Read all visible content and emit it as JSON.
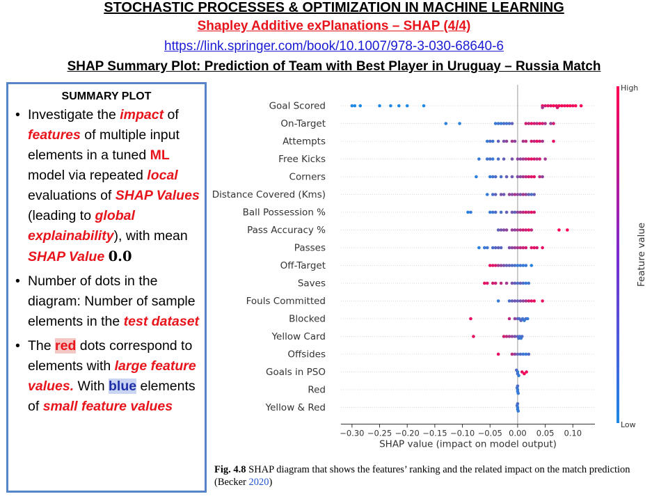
{
  "header": {
    "title": "STOCHASTIC PROCESSES & OPTIMIZATION IN MACHINE LEARNING",
    "subtitle": "Shapley Additive exPlanations – SHAP (4/4)",
    "link": "https://link.springer.com/book/10.1007/978-3-030-68640-6",
    "plot_title": "SHAP Summary Plot: Prediction of Team with Best Player in Uruguay – Russia Match"
  },
  "summary": {
    "heading": "SUMMARY PLOT",
    "bullet1": {
      "t1": "Investigate the ",
      "impact": "impact",
      "t2": " of ",
      "features": "features",
      "t3": " of multiple input elements in a tuned ",
      "ml": "ML",
      "t4": " model via repeated ",
      "local": "local",
      "t5": " evaluations of ",
      "shap_values": "SHAP Values",
      "t6": " (leading to ",
      "global": "global explainability",
      "t7": "), with mean ",
      "shap_value": "SHAP Value",
      "t8": " ",
      "zero": "0.0"
    },
    "bullet2": {
      "t1": "Number of dots in the diagram: Number of sample elements in the ",
      "test": "test dataset"
    },
    "bullet3": {
      "t1": "The ",
      "red": "red",
      "t2": " dots correspond to elements with ",
      "large": "large feature values.",
      "t3": " With ",
      "blue": "blue",
      "t4": " elements of ",
      "small": "small feature values"
    }
  },
  "caption": {
    "fig": "Fig. 4.8",
    "text": "  SHAP diagram that shows the features’ ranking and the related impact on the match prediction (Becker ",
    "cite": "2020",
    "end": ")"
  },
  "colors": {
    "low": "#1e88e5",
    "high": "#ff0052",
    "accent_red": "#e8141c",
    "accent_blue": "#1f2fa8"
  },
  "chart_data": {
    "type": "scatter",
    "xlabel": "SHAP value (impact on model output)",
    "xlim": [
      -0.32,
      0.14
    ],
    "xticks": [
      -0.3,
      -0.25,
      -0.2,
      -0.15,
      -0.1,
      -0.05,
      0.0,
      0.05,
      0.1
    ],
    "xtick_labels": [
      "−0.30",
      "−0.25",
      "−0.20",
      "−0.15",
      "−0.10",
      "−0.05",
      "0.00",
      "0.05",
      "0.10"
    ],
    "colorbar": {
      "label": "Feature value",
      "high": "High",
      "low": "Low"
    },
    "features": [
      {
        "name": "Goal Scored",
        "points": [
          [
            -0.3,
            0
          ],
          [
            -0.295,
            0
          ],
          [
            -0.285,
            0
          ],
          [
            -0.25,
            0
          ],
          [
            -0.23,
            0
          ],
          [
            -0.215,
            0
          ],
          [
            -0.2,
            0
          ],
          [
            -0.17,
            0
          ],
          [
            0.045,
            0.9
          ],
          [
            0.05,
            0.8
          ],
          [
            0.055,
            0.9
          ],
          [
            0.06,
            0.9
          ],
          [
            0.065,
            1
          ],
          [
            0.07,
            0.9
          ],
          [
            0.075,
            1
          ],
          [
            0.08,
            1
          ],
          [
            0.085,
            0.9
          ],
          [
            0.09,
            1
          ],
          [
            0.095,
            1
          ],
          [
            0.1,
            0.9
          ],
          [
            0.105,
            1
          ],
          [
            0.115,
            1
          ],
          [
            0.045,
            0.6
          ],
          [
            0.072,
            0.8
          ]
        ]
      },
      {
        "name": "On-Target",
        "points": [
          [
            -0.13,
            0.05
          ],
          [
            -0.105,
            0.05
          ],
          [
            -0.04,
            0.1
          ],
          [
            -0.035,
            0.15
          ],
          [
            -0.03,
            0.1
          ],
          [
            -0.025,
            0.2
          ],
          [
            -0.02,
            0.15
          ],
          [
            -0.015,
            0.2
          ],
          [
            -0.01,
            0.3
          ],
          [
            0.015,
            0.8
          ],
          [
            0.02,
            0.7
          ],
          [
            0.025,
            0.9
          ],
          [
            0.03,
            0.8
          ],
          [
            0.035,
            0.7
          ],
          [
            0.04,
            0.9
          ],
          [
            0.045,
            0.8
          ],
          [
            0.05,
            0.6
          ],
          [
            0.06,
            0.5
          ],
          [
            0.065,
            0.8
          ]
        ]
      },
      {
        "name": "Attempts",
        "points": [
          [
            -0.055,
            0.1
          ],
          [
            -0.05,
            0.2
          ],
          [
            -0.045,
            0.15
          ],
          [
            -0.035,
            0.3
          ],
          [
            -0.025,
            0.4
          ],
          [
            -0.02,
            0.5
          ],
          [
            -0.01,
            0.6
          ],
          [
            -0.005,
            0.5
          ],
          [
            0.01,
            0.6
          ],
          [
            0.015,
            0.7
          ],
          [
            0.025,
            0.8
          ],
          [
            0.03,
            0.7
          ],
          [
            0.035,
            0.9
          ],
          [
            0.04,
            0.8
          ],
          [
            0.045,
            0.6
          ],
          [
            0.065,
            0.9
          ]
        ]
      },
      {
        "name": "Free Kicks",
        "points": [
          [
            -0.07,
            0.1
          ],
          [
            -0.055,
            0.15
          ],
          [
            -0.05,
            0.2
          ],
          [
            -0.045,
            0.1
          ],
          [
            -0.035,
            0.2
          ],
          [
            -0.025,
            0.3
          ],
          [
            -0.01,
            0.4
          ],
          [
            0.0,
            0.5
          ],
          [
            0.005,
            0.5
          ],
          [
            0.01,
            0.6
          ],
          [
            0.015,
            0.7
          ],
          [
            0.02,
            0.8
          ],
          [
            0.025,
            0.9
          ],
          [
            0.03,
            0.8
          ],
          [
            0.035,
            0.7
          ],
          [
            0.04,
            0.8
          ],
          [
            0.05,
            0.6
          ]
        ]
      },
      {
        "name": "Corners",
        "points": [
          [
            -0.075,
            0.05
          ],
          [
            -0.05,
            0.1
          ],
          [
            -0.045,
            0.15
          ],
          [
            -0.04,
            0.2
          ],
          [
            -0.03,
            0.2
          ],
          [
            -0.02,
            0.3
          ],
          [
            -0.01,
            0.35
          ],
          [
            0.0,
            0.45
          ],
          [
            0.005,
            0.5
          ],
          [
            0.01,
            0.6
          ],
          [
            0.015,
            0.7
          ],
          [
            0.02,
            0.8
          ],
          [
            0.025,
            0.85
          ],
          [
            0.03,
            0.9
          ],
          [
            0.04,
            0.7
          ],
          [
            0.045,
            0.5
          ]
        ]
      },
      {
        "name": "Distance Covered (Kms)",
        "points": [
          [
            -0.055,
            0.1
          ],
          [
            -0.045,
            0.2
          ],
          [
            -0.04,
            0.3
          ],
          [
            -0.03,
            0.4
          ],
          [
            -0.025,
            0.35
          ],
          [
            -0.015,
            0.5
          ],
          [
            -0.01,
            0.45
          ],
          [
            -0.005,
            0.6
          ],
          [
            0.0,
            0.5
          ],
          [
            0.005,
            0.4
          ],
          [
            0.01,
            0.6
          ],
          [
            0.015,
            0.5
          ],
          [
            0.02,
            0.3
          ],
          [
            0.025,
            0.2
          ],
          [
            0.03,
            0.3
          ]
        ]
      },
      {
        "name": "Ball Possession %",
        "points": [
          [
            -0.09,
            0.05
          ],
          [
            -0.085,
            0.1
          ],
          [
            -0.05,
            0.1
          ],
          [
            -0.045,
            0.15
          ],
          [
            -0.04,
            0.2
          ],
          [
            -0.03,
            0.2
          ],
          [
            -0.02,
            0.3
          ],
          [
            -0.01,
            0.35
          ],
          [
            -0.005,
            0.3
          ],
          [
            0.0,
            0.5
          ],
          [
            0.005,
            0.6
          ],
          [
            0.01,
            0.7
          ],
          [
            0.015,
            0.8
          ],
          [
            0.02,
            0.7
          ],
          [
            0.025,
            0.9
          ],
          [
            0.03,
            0.8
          ]
        ]
      },
      {
        "name": "Pass Accuracy %",
        "points": [
          [
            -0.035,
            0.3
          ],
          [
            -0.03,
            0.4
          ],
          [
            -0.025,
            0.45
          ],
          [
            -0.02,
            0.5
          ],
          [
            -0.01,
            0.55
          ],
          [
            -0.005,
            0.5
          ],
          [
            0.0,
            0.6
          ],
          [
            0.005,
            0.7
          ],
          [
            0.01,
            0.8
          ],
          [
            0.015,
            0.75
          ],
          [
            0.02,
            0.9
          ],
          [
            0.025,
            0.7
          ],
          [
            0.075,
            1
          ],
          [
            0.09,
            1
          ]
        ]
      },
      {
        "name": "Passes",
        "points": [
          [
            -0.07,
            0.05
          ],
          [
            -0.06,
            0.1
          ],
          [
            -0.055,
            0.15
          ],
          [
            -0.045,
            0.2
          ],
          [
            -0.04,
            0.25
          ],
          [
            -0.035,
            0.3
          ],
          [
            -0.03,
            0.25
          ],
          [
            -0.015,
            0.4
          ],
          [
            -0.01,
            0.5
          ],
          [
            -0.005,
            0.55
          ],
          [
            0.0,
            0.6
          ],
          [
            0.005,
            0.7
          ],
          [
            0.01,
            0.75
          ],
          [
            0.015,
            0.8
          ],
          [
            0.025,
            0.85
          ],
          [
            0.03,
            0.9
          ],
          [
            0.035,
            0.8
          ],
          [
            0.045,
            0.9
          ]
        ]
      },
      {
        "name": "Off-Target",
        "points": [
          [
            -0.05,
            0.9
          ],
          [
            -0.045,
            0.85
          ],
          [
            -0.04,
            0.8
          ],
          [
            -0.035,
            0.6
          ],
          [
            -0.03,
            0.5
          ],
          [
            -0.025,
            0.4
          ],
          [
            -0.02,
            0.3
          ],
          [
            -0.015,
            0.3
          ],
          [
            -0.01,
            0.2
          ],
          [
            -0.005,
            0.2
          ],
          [
            0.0,
            0.1
          ],
          [
            0.005,
            0.15
          ],
          [
            0.01,
            0.1
          ],
          [
            0.015,
            0.1
          ],
          [
            0.025,
            0.05
          ]
        ]
      },
      {
        "name": "Saves",
        "points": [
          [
            -0.06,
            0.9
          ],
          [
            -0.055,
            0.85
          ],
          [
            -0.045,
            0.8
          ],
          [
            -0.04,
            0.75
          ],
          [
            -0.03,
            0.7
          ],
          [
            -0.02,
            0.6
          ],
          [
            -0.01,
            0.4
          ],
          [
            -0.005,
            0.3
          ],
          [
            0.0,
            0.2
          ],
          [
            0.005,
            0.3
          ],
          [
            0.01,
            0.2
          ],
          [
            0.015,
            0.1
          ],
          [
            0.02,
            0.15
          ]
        ]
      },
      {
        "name": "Fouls Committed",
        "points": [
          [
            -0.035,
            0.1
          ],
          [
            -0.015,
            0.2
          ],
          [
            -0.01,
            0.3
          ],
          [
            -0.005,
            0.35
          ],
          [
            0.0,
            0.3
          ],
          [
            0.005,
            0.4
          ],
          [
            0.01,
            0.5
          ],
          [
            0.015,
            0.6
          ],
          [
            0.02,
            0.8
          ],
          [
            0.025,
            0.85
          ],
          [
            0.03,
            0.9
          ],
          [
            0.045,
            0.9
          ]
        ]
      },
      {
        "name": "Blocked",
        "points": [
          [
            -0.085,
            0.9
          ],
          [
            -0.015,
            0.7
          ],
          [
            -0.005,
            0.5
          ],
          [
            0.0,
            0.3
          ],
          [
            0.003,
            0.2
          ],
          [
            0.006,
            0.25
          ],
          [
            0.009,
            0.15
          ],
          [
            0.012,
            0.1
          ],
          [
            0.015,
            0.2
          ],
          [
            0.018,
            0.1
          ]
        ]
      },
      {
        "name": "Yellow Card",
        "points": [
          [
            -0.08,
            0.9
          ],
          [
            -0.025,
            0.8
          ],
          [
            -0.02,
            0.7
          ],
          [
            -0.015,
            0.6
          ],
          [
            -0.01,
            0.5
          ],
          [
            -0.005,
            0.4
          ],
          [
            0.0,
            0.3
          ],
          [
            0.002,
            0.2
          ],
          [
            0.004,
            0.15
          ],
          [
            0.006,
            0.1
          ],
          [
            0.008,
            0.2
          ]
        ]
      },
      {
        "name": "Offsides",
        "points": [
          [
            -0.035,
            0.9
          ],
          [
            -0.01,
            0.7
          ],
          [
            -0.005,
            0.5
          ],
          [
            0.0,
            0.3
          ],
          [
            0.005,
            0.2
          ],
          [
            0.01,
            0.15
          ],
          [
            0.015,
            0.1
          ],
          [
            0.02,
            0.2
          ]
        ]
      },
      {
        "name": "Goals in PSO",
        "points": [
          [
            0.0,
            0.1
          ],
          [
            0.0,
            0.15
          ],
          [
            -0.002,
            0.2
          ],
          [
            0.002,
            0.1
          ],
          [
            0.008,
            0.9
          ],
          [
            0.012,
            0.95
          ],
          [
            0.016,
            0.9
          ]
        ]
      },
      {
        "name": "Red",
        "points": [
          [
            0.0,
            0.1
          ],
          [
            0.0,
            0.1
          ],
          [
            -0.001,
            0.15
          ],
          [
            0.001,
            0.1
          ],
          [
            0.0,
            0.2
          ]
        ]
      },
      {
        "name": "Yellow & Red",
        "points": [
          [
            0.0,
            0.1
          ],
          [
            0.0,
            0.1
          ],
          [
            -0.001,
            0.15
          ],
          [
            0.001,
            0.1
          ],
          [
            0.0,
            0.2
          ]
        ]
      }
    ]
  }
}
